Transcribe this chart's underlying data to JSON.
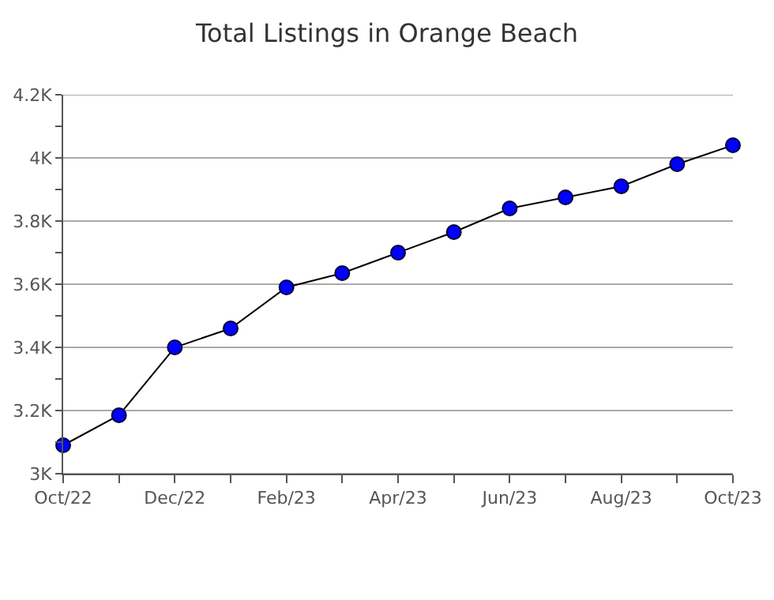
{
  "chart_data": {
    "type": "line",
    "title": "Total Listings in Orange Beach",
    "categories": [
      "Oct/22",
      null,
      "Dec/22",
      null,
      "Feb/23",
      null,
      "Apr/23",
      null,
      "Jun/23",
      null,
      "Aug/23",
      null,
      "Oct/23"
    ],
    "series": [
      {
        "color": "#0000ff",
        "values": [
          3090,
          3185,
          3400,
          3460,
          3590,
          3635,
          3700,
          3765,
          3840,
          3875,
          3910,
          3980,
          4040
        ]
      }
    ],
    "ylim": [
      3000,
      4200
    ],
    "yticks": [
      {
        "value": 3000,
        "label": "3K"
      },
      {
        "value": 3100,
        "label": null
      },
      {
        "value": 3200,
        "label": "3.2K"
      },
      {
        "value": 3300,
        "label": null
      },
      {
        "value": 3400,
        "label": "3.4K"
      },
      {
        "value": 3500,
        "label": null
      },
      {
        "value": 3600,
        "label": "3.6K"
      },
      {
        "value": 3700,
        "label": null
      },
      {
        "value": 3800,
        "label": "3.8K"
      },
      {
        "value": 3900,
        "label": null
      },
      {
        "value": 4000,
        "label": "4K"
      },
      {
        "value": 4100,
        "label": null
      },
      {
        "value": 4200,
        "label": "4.2K"
      }
    ],
    "grid": "y",
    "marker": "circle",
    "line_style": "solid"
  }
}
